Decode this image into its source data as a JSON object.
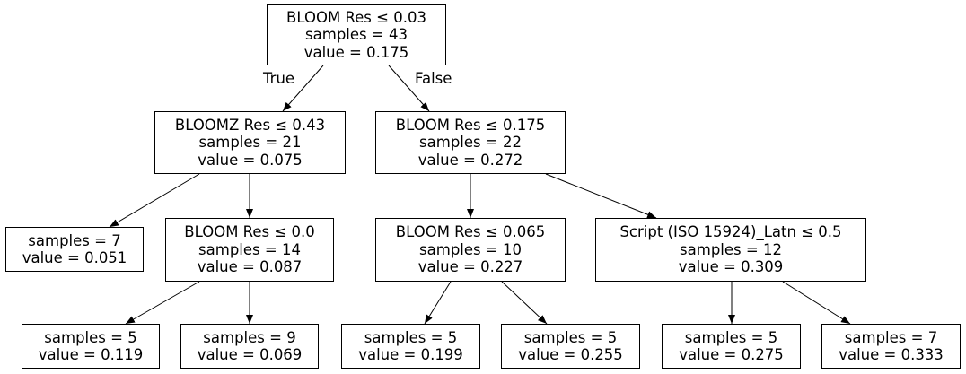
{
  "tree": {
    "nodes": [
      {
        "id": "n0",
        "lines": [
          "BLOOM Res ≤ 0.03",
          "samples = 43",
          "value = 0.175"
        ]
      },
      {
        "id": "n1",
        "lines": [
          "BLOOMZ Res ≤ 0.43",
          "samples = 21",
          "value = 0.075"
        ]
      },
      {
        "id": "n2",
        "lines": [
          "BLOOM Res ≤ 0.175",
          "samples = 22",
          "value = 0.272"
        ]
      },
      {
        "id": "n3",
        "lines": [
          "samples = 7",
          "value = 0.051"
        ]
      },
      {
        "id": "n4",
        "lines": [
          "BLOOM Res ≤ 0.0",
          "samples = 14",
          "value = 0.087"
        ]
      },
      {
        "id": "n5",
        "lines": [
          "BLOOM Res ≤ 0.065",
          "samples = 10",
          "value = 0.227"
        ]
      },
      {
        "id": "n6",
        "lines": [
          "Script (ISO 15924)_Latn ≤ 0.5",
          "samples = 12",
          "value = 0.309"
        ]
      },
      {
        "id": "n7",
        "lines": [
          "samples = 5",
          "value = 0.119"
        ]
      },
      {
        "id": "n8",
        "lines": [
          "samples = 9",
          "value = 0.069"
        ]
      },
      {
        "id": "n9",
        "lines": [
          "samples = 5",
          "value = 0.199"
        ]
      },
      {
        "id": "n10",
        "lines": [
          "samples = 5",
          "value = 0.255"
        ]
      },
      {
        "id": "n11",
        "lines": [
          "samples = 5",
          "value = 0.275"
        ]
      },
      {
        "id": "n12",
        "lines": [
          "samples = 7",
          "value = 0.333"
        ]
      }
    ],
    "edges": [
      {
        "from": "n0",
        "to": "n1",
        "label": "True"
      },
      {
        "from": "n0",
        "to": "n2",
        "label": "False"
      },
      {
        "from": "n1",
        "to": "n3"
      },
      {
        "from": "n1",
        "to": "n4"
      },
      {
        "from": "n2",
        "to": "n5"
      },
      {
        "from": "n2",
        "to": "n6"
      },
      {
        "from": "n4",
        "to": "n7"
      },
      {
        "from": "n4",
        "to": "n8"
      },
      {
        "from": "n5",
        "to": "n9"
      },
      {
        "from": "n5",
        "to": "n10"
      },
      {
        "from": "n6",
        "to": "n11"
      },
      {
        "from": "n6",
        "to": "n12"
      }
    ]
  }
}
